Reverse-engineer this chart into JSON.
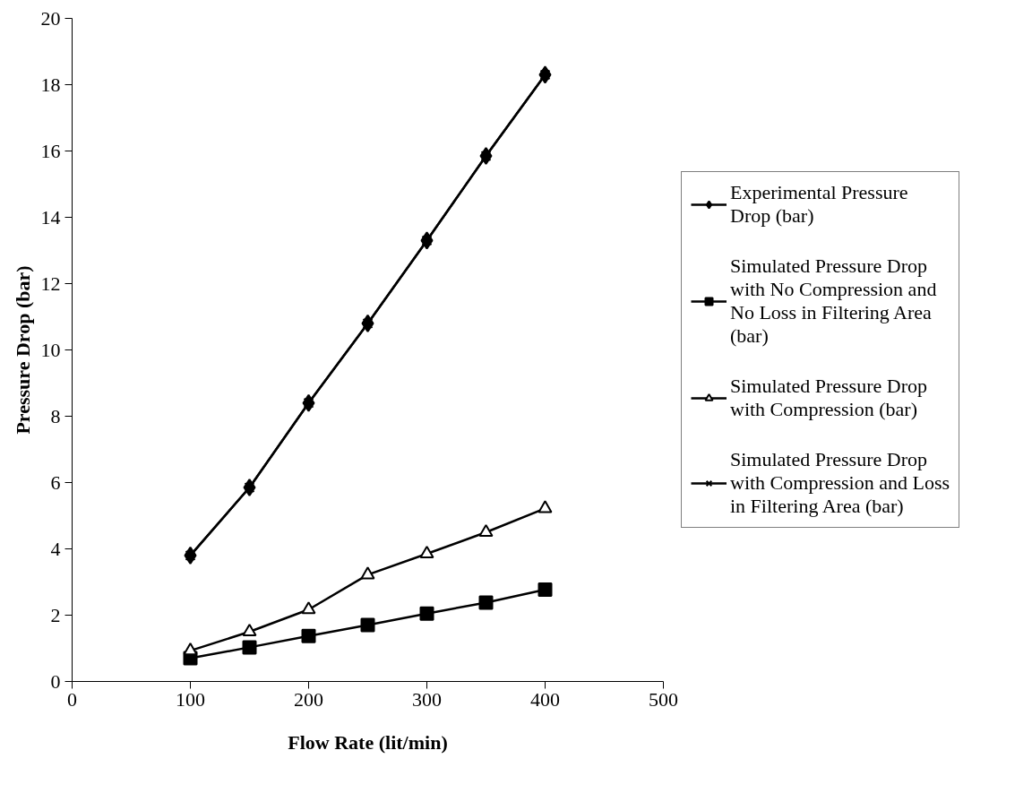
{
  "chart_data": {
    "type": "line",
    "xlabel": "Flow Rate (lit/min)",
    "ylabel": "Pressure Drop (bar)",
    "x": [
      100,
      150,
      200,
      250,
      300,
      350,
      400
    ],
    "xlim": [
      0,
      500
    ],
    "xticks": [
      0,
      100,
      200,
      300,
      400,
      500
    ],
    "ylim": [
      0,
      20
    ],
    "yticks": [
      0,
      2,
      4,
      6,
      8,
      10,
      12,
      14,
      16,
      18,
      20
    ],
    "grid": false,
    "legend": "right",
    "series": [
      {
        "name": "Experimental Pressure Drop (bar)",
        "color": "#000000",
        "marker": "diamond",
        "values": [
          3.8,
          5.85,
          8.4,
          10.8,
          13.3,
          15.85,
          18.3
        ]
      },
      {
        "name": "Simulated Pressure Drop with No Compression and No Loss in Filtering Area (bar)",
        "color": "#000000",
        "marker": "square",
        "values": [
          0.7,
          1.03,
          1.37,
          1.7,
          2.05,
          2.38,
          2.77
        ]
      },
      {
        "name": "Simulated Pressure Drop with Compression (bar)",
        "color": "#000000",
        "marker": "triangle",
        "values": [
          0.93,
          1.5,
          2.17,
          3.22,
          3.85,
          4.5,
          5.22
        ]
      },
      {
        "name": "Simulated Pressure Drop with Compression and Loss in Filtering Area (bar)",
        "color": "#000000",
        "marker": "cross",
        "values": [
          3.8,
          5.85,
          8.4,
          10.8,
          13.3,
          15.85,
          18.3
        ]
      }
    ]
  }
}
